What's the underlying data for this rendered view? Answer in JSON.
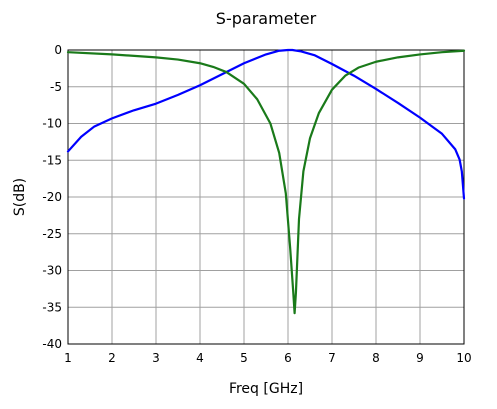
{
  "chart_data": {
    "type": "line",
    "title": "S-parameter",
    "xlabel": "Freq [GHz]",
    "ylabel": "S(dB)",
    "xlim": [
      1,
      10
    ],
    "ylim": [
      -40,
      0
    ],
    "x_ticks": [
      "1",
      "2",
      "3",
      "4",
      "5",
      "6",
      "7",
      "8",
      "9",
      "10"
    ],
    "y_ticks": [
      "0",
      "-5",
      "-10",
      "-15",
      "-20",
      "-25",
      "-30",
      "-35",
      "-40"
    ],
    "grid": true,
    "series": [
      {
        "color": "#0000ff",
        "x": [
          1,
          1.3,
          1.6,
          2,
          2.5,
          3,
          3.5,
          4,
          4.5,
          5,
          5.5,
          5.8,
          6.0,
          6.1,
          6.3,
          6.6,
          7,
          7.5,
          8,
          8.5,
          9,
          9.5,
          9.8,
          9.9,
          9.95,
          10
        ],
        "y": [
          -13.8,
          -11.8,
          -10.4,
          -9.3,
          -8.2,
          -7.3,
          -6.1,
          -4.8,
          -3.3,
          -1.8,
          -0.6,
          -0.1,
          0,
          0,
          -0.2,
          -0.7,
          -1.9,
          -3.5,
          -5.3,
          -7.2,
          -9.2,
          -11.4,
          -13.5,
          -14.9,
          -16.5,
          -20.2
        ]
      },
      {
        "color": "#1a7a1a",
        "x": [
          1,
          2,
          3,
          3.5,
          4,
          4.3,
          4.6,
          5,
          5.3,
          5.6,
          5.8,
          5.95,
          6.05,
          6.12,
          6.15,
          6.18,
          6.25,
          6.35,
          6.5,
          6.7,
          7,
          7.3,
          7.6,
          8,
          8.5,
          9,
          9.5,
          10
        ],
        "y": [
          -0.3,
          -0.6,
          -1.0,
          -1.3,
          -1.8,
          -2.3,
          -3.0,
          -4.6,
          -6.7,
          -10.0,
          -14.0,
          -19.5,
          -27.0,
          -33.0,
          -35.8,
          -33.0,
          -23.0,
          -16.5,
          -12.0,
          -8.6,
          -5.4,
          -3.5,
          -2.4,
          -1.6,
          -1.0,
          -0.6,
          -0.3,
          -0.1
        ]
      }
    ]
  }
}
